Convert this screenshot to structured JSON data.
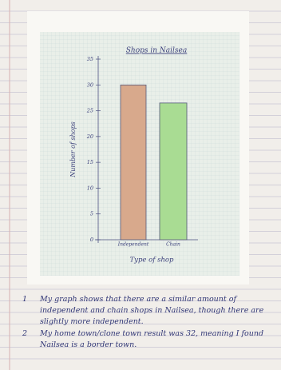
{
  "chart_data": {
    "type": "bar",
    "title": "Shops in Nailsea",
    "x_label": "Type of shop",
    "y_label": "Number of shops",
    "categories": [
      "Independent",
      "Chain"
    ],
    "series": [
      {
        "name": null,
        "values": [
          30,
          26.5
        ]
      }
    ],
    "colors": [
      "#d8a98c",
      "#a9dc93"
    ],
    "ylim": [
      0,
      35
    ],
    "yticks": [
      0,
      5,
      10,
      15,
      20,
      25,
      30,
      35
    ],
    "grid": false
  },
  "notes": [
    {
      "number": "1",
      "text": "My graph shows that there are a similar amount of independent and chain shops in Nailsea, though there are slightly more independent."
    },
    {
      "number": "2",
      "text": "My home town/clone town result was 32, meaning I found Nailsea is a border town."
    }
  ]
}
